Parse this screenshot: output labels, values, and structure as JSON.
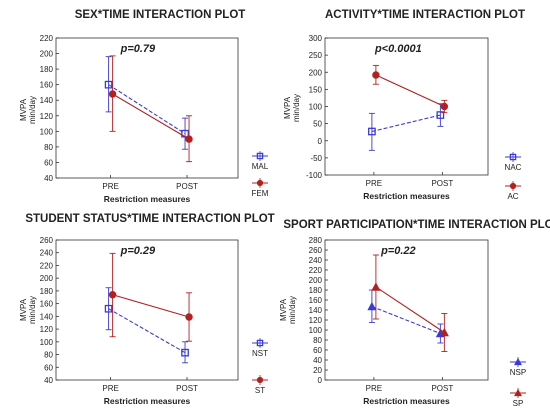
{
  "chart_data": [
    {
      "type": "line",
      "title": "SEX*TIME INTERACTION PLOT",
      "annotation": "p=0.79",
      "xlabel": "Restriction measures",
      "ylabel": "MVPA min/day",
      "ylim": [
        40,
        220
      ],
      "yticks": [
        40,
        60,
        80,
        100,
        120,
        140,
        160,
        180,
        200,
        220
      ],
      "categories": [
        "PRE",
        "POST"
      ],
      "grid": false,
      "legend": "right",
      "series": [
        {
          "name": "MAL",
          "values": [
            160,
            97
          ],
          "ci_low": [
            125,
            77
          ],
          "ci_high": [
            196,
            117
          ],
          "color": "#3a3ad6",
          "dashed": true,
          "marker": "square"
        },
        {
          "name": "FEM",
          "values": [
            148,
            90
          ],
          "ci_low": [
            100,
            61
          ],
          "ci_high": [
            197,
            120
          ],
          "color": "#b22020",
          "dashed": false,
          "marker": "circle"
        }
      ]
    },
    {
      "type": "line",
      "title": "ACTIVITY*TIME INTERACTION PLOT",
      "annotation": "p<0.0001",
      "xlabel": "Restriction measures",
      "ylabel": "MVPA min/day",
      "ylim": [
        -100,
        300
      ],
      "yticks": [
        -100,
        -50,
        0,
        50,
        100,
        150,
        200,
        250,
        300
      ],
      "categories": [
        "PRE",
        "POST"
      ],
      "grid": false,
      "legend": "right",
      "series": [
        {
          "name": "NAC",
          "values": [
            27,
            75
          ],
          "ci_low": [
            -28,
            42
          ],
          "ci_high": [
            80,
            108
          ],
          "color": "#3a3ad6",
          "dashed": true,
          "marker": "square"
        },
        {
          "name": "AC",
          "values": [
            192,
            100
          ],
          "ci_low": [
            165,
            82
          ],
          "ci_high": [
            220,
            118
          ],
          "color": "#b22020",
          "dashed": false,
          "marker": "circle"
        }
      ]
    },
    {
      "type": "line",
      "title": "STUDENT STATUS*TIME INTERACTION PLOT",
      "annotation": "p=0.29",
      "xlabel": "Restriction measures",
      "ylabel": "MVPA min/day",
      "ylim": [
        40,
        260
      ],
      "yticks": [
        40,
        60,
        80,
        100,
        120,
        140,
        160,
        180,
        200,
        220,
        240,
        260
      ],
      "categories": [
        "PRE",
        "POST"
      ],
      "grid": false,
      "legend": "right",
      "series": [
        {
          "name": "NST",
          "values": [
            152,
            83
          ],
          "ci_low": [
            119,
            67
          ],
          "ci_high": [
            185,
            100
          ],
          "color": "#3a3ad6",
          "dashed": true,
          "marker": "square"
        },
        {
          "name": "ST",
          "values": [
            174,
            139
          ],
          "ci_low": [
            108,
            101
          ],
          "ci_high": [
            239,
            177
          ],
          "color": "#b22020",
          "dashed": false,
          "marker": "circle"
        }
      ]
    },
    {
      "type": "line",
      "title": "SPORT PARTICIPATION*TIME INTERACTION PLOT",
      "annotation": "p=0.22",
      "xlabel": "Restriction measures",
      "ylabel": "MVPA min/day",
      "ylim": [
        0,
        280
      ],
      "yticks": [
        0,
        20,
        40,
        60,
        80,
        100,
        120,
        140,
        160,
        180,
        200,
        220,
        240,
        260,
        280
      ],
      "categories": [
        "PRE",
        "POST"
      ],
      "grid": false,
      "legend": "right",
      "series": [
        {
          "name": "NSP",
          "values": [
            147,
            93
          ],
          "ci_low": [
            115,
            74
          ],
          "ci_high": [
            180,
            112
          ],
          "color": "#3a3ad6",
          "dashed": true,
          "marker": "triangle"
        },
        {
          "name": "SP",
          "values": [
            186,
            95
          ],
          "ci_low": [
            122,
            57
          ],
          "ci_high": [
            250,
            133
          ],
          "color": "#b22020",
          "dashed": false,
          "marker": "triangle"
        }
      ]
    }
  ]
}
